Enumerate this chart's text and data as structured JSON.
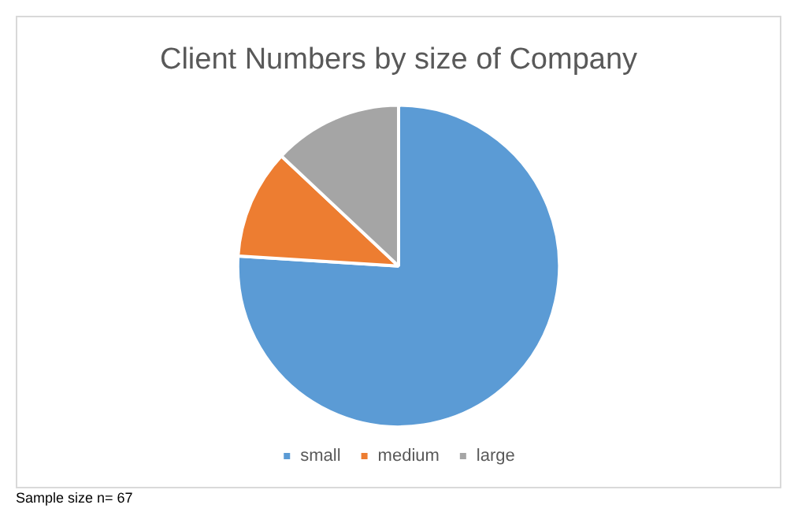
{
  "chart_data": {
    "type": "pie",
    "title": "Client Numbers by size of Company",
    "categories": [
      "small",
      "medium",
      "large"
    ],
    "values": [
      76,
      11,
      13
    ],
    "colors": [
      "#5b9bd5",
      "#ed7d31",
      "#a5a5a5"
    ],
    "legend": "bottom",
    "annotations": [
      "Sample size n= 67"
    ]
  }
}
